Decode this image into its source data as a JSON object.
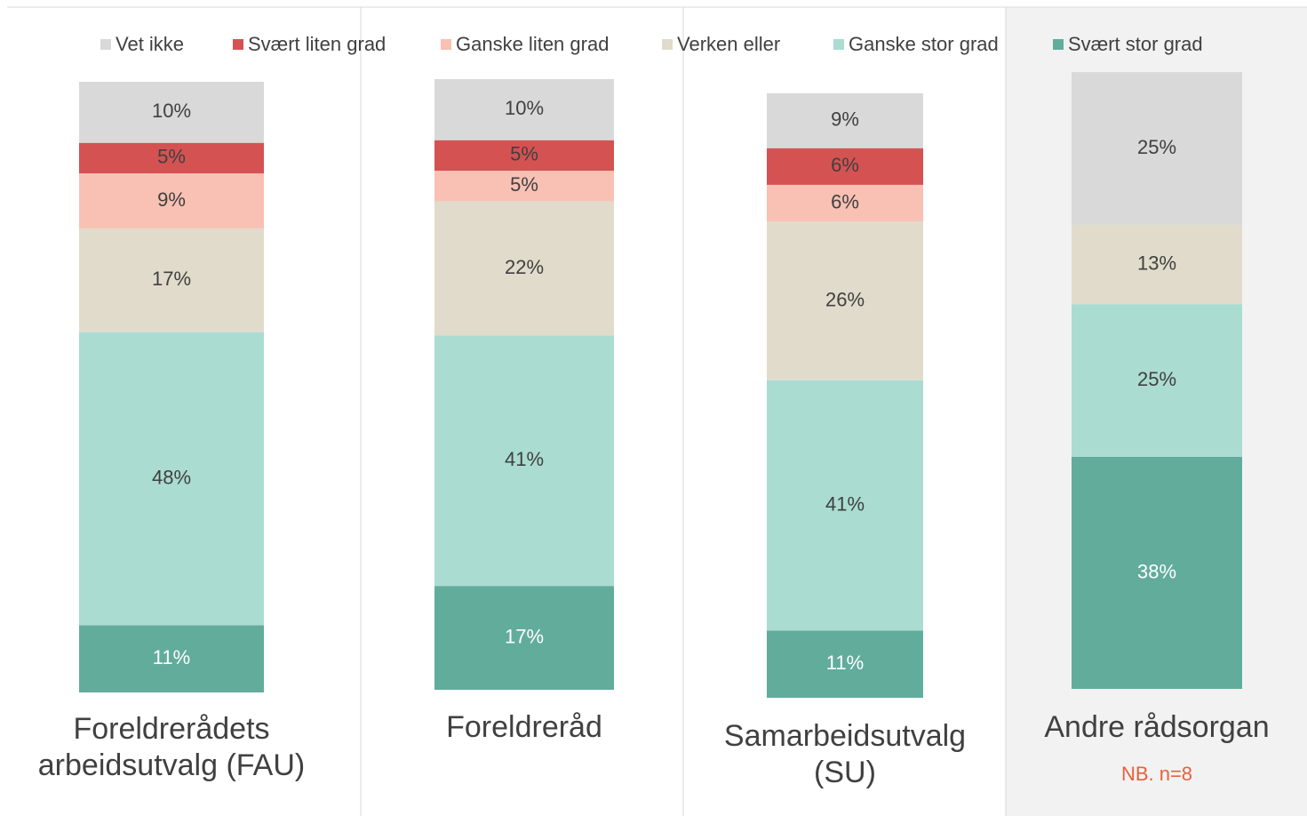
{
  "chart_data": {
    "type": "stacked-bar",
    "categories": [
      "Foreldrerådets arbeidsutvalg (FAU)",
      "Foreldreråd",
      "Samarbeidsutvalg (SU)",
      "Andre rådsorgan"
    ],
    "series": [
      {
        "name": "Vet ikke",
        "color": "#d9d9d9",
        "values": [
          10,
          10,
          9,
          25
        ],
        "value_labels": [
          "10%",
          "10%",
          "9%",
          "25%"
        ]
      },
      {
        "name": "Svært liten grad",
        "color": "#d55252",
        "values": [
          5,
          5,
          6,
          null
        ],
        "value_labels": [
          "5%",
          "5%",
          "6%",
          null
        ]
      },
      {
        "name": "Ganske liten grad",
        "color": "#f9c0b4",
        "values": [
          9,
          5,
          6,
          null
        ],
        "value_labels": [
          "9%",
          "5%",
          "6%",
          null
        ]
      },
      {
        "name": "Verken eller",
        "color": "#e0dbcb",
        "values": [
          17,
          22,
          26,
          13
        ],
        "value_labels": [
          "17%",
          "22%",
          "26%",
          "13%"
        ]
      },
      {
        "name": "Ganske stor grad",
        "color": "#aadcd2",
        "values": [
          48,
          41,
          41,
          25
        ],
        "value_labels": [
          "48%",
          "41%",
          "41%",
          "25%"
        ]
      },
      {
        "name": "Svært stor grad",
        "color": "#62ac9c",
        "values": [
          11,
          17,
          11,
          38
        ],
        "value_labels": [
          "11%",
          "17%",
          "11%",
          "38%"
        ]
      }
    ],
    "ylim": [
      0,
      100
    ],
    "annotation": "NB. n=8"
  }
}
